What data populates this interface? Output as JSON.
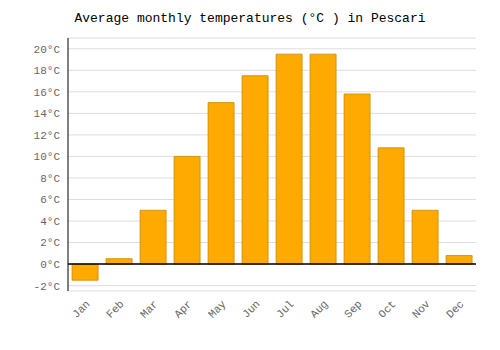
{
  "chart_data": {
    "type": "bar",
    "title": "Average monthly temperatures (°C ) in Pescari",
    "categories": [
      "Jan",
      "Feb",
      "Mar",
      "Apr",
      "May",
      "Jun",
      "Jul",
      "Aug",
      "Sep",
      "Oct",
      "Nov",
      "Dec"
    ],
    "values": [
      -1.5,
      0.5,
      5.0,
      10.0,
      15.0,
      17.5,
      19.5,
      19.5,
      15.8,
      10.8,
      5.0,
      0.8
    ],
    "color": "#FFAA00",
    "ylim": [
      -2.5,
      21.0
    ],
    "yticks": [
      {
        "value": -2,
        "label": "-2°C"
      },
      {
        "value": 0,
        "label": "0°C"
      },
      {
        "value": 2,
        "label": "2°C"
      },
      {
        "value": 4,
        "label": "4°C"
      },
      {
        "value": 6,
        "label": "6°C"
      },
      {
        "value": 8,
        "label": "8°C"
      },
      {
        "value": 10,
        "label": "10°C"
      },
      {
        "value": 12,
        "label": "12°C"
      },
      {
        "value": 14,
        "label": "14°C"
      },
      {
        "value": 16,
        "label": "16°C"
      },
      {
        "value": 18,
        "label": "18°C"
      },
      {
        "value": 20,
        "label": "20°C"
      }
    ],
    "grid": true
  }
}
